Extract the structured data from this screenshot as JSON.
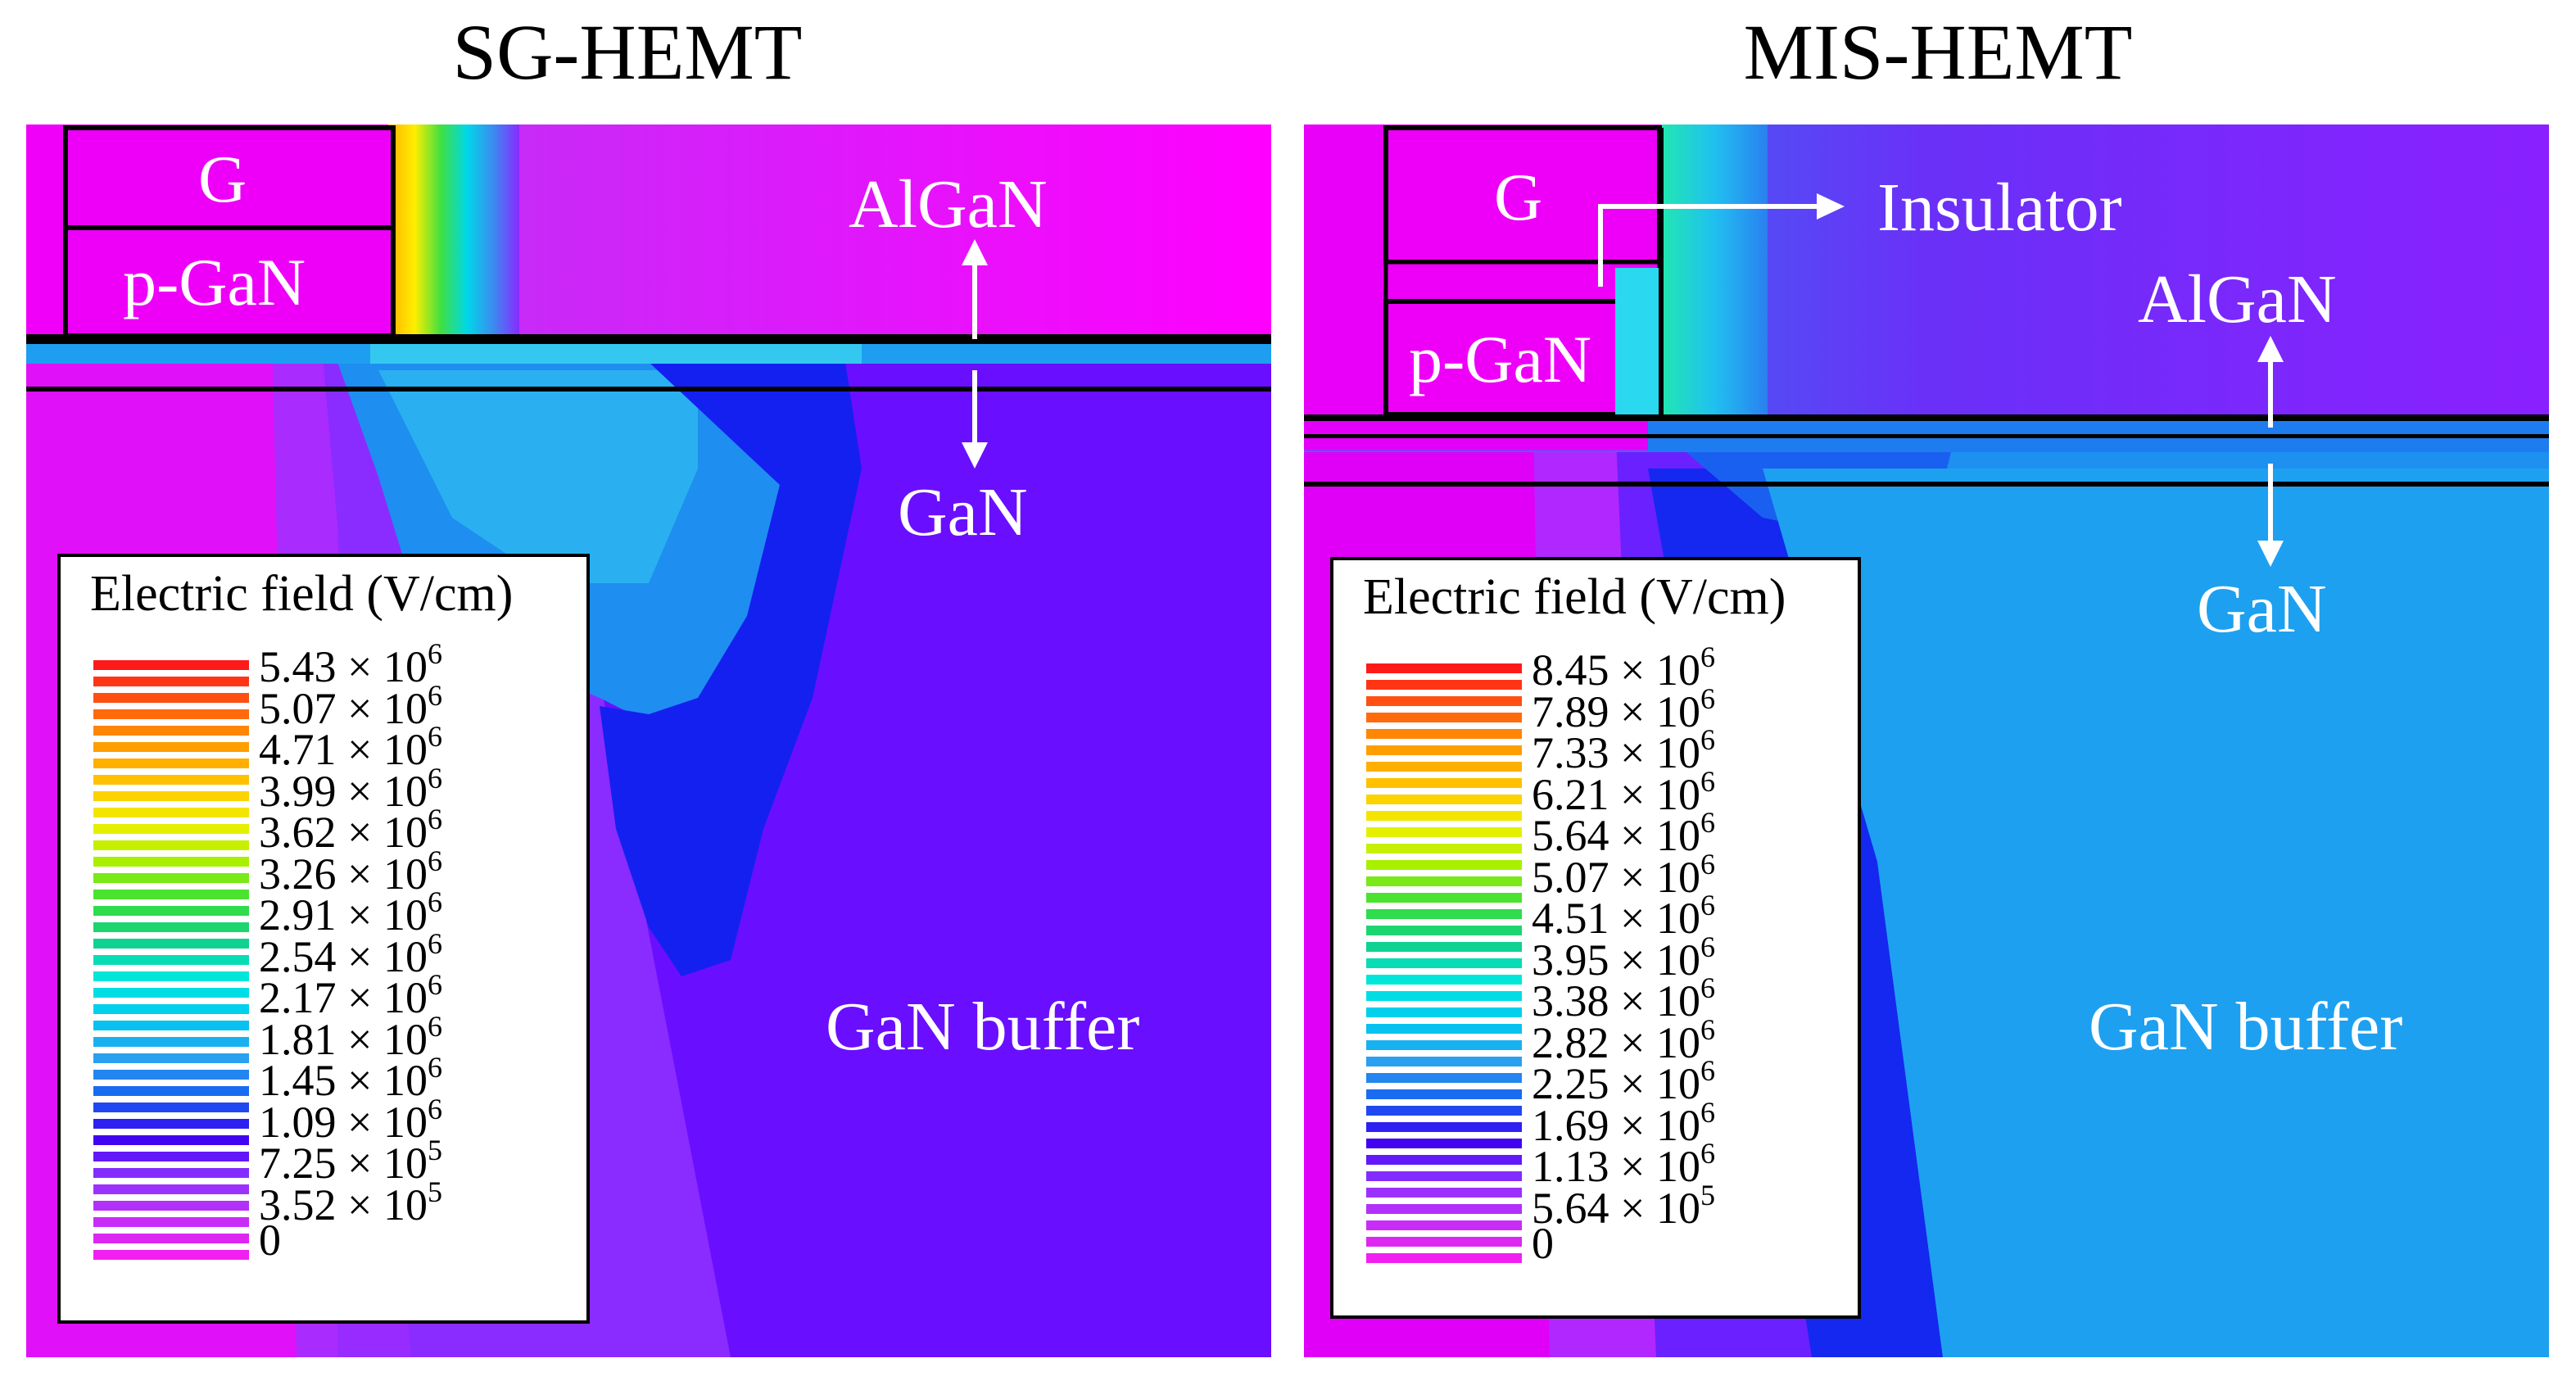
{
  "panels": {
    "left": {
      "title": "SG-HEMT",
      "labels": {
        "gate": "G",
        "pgan": "p-GaN",
        "algan": "AlGaN",
        "gan": "GaN",
        "buffer": "GaN buffer"
      },
      "legend": {
        "title": "Electric field (V/cm)",
        "items": [
          {
            "mant": "5.43 × 10",
            "exp": "6"
          },
          {
            "mant": "5.07 × 10",
            "exp": "6"
          },
          {
            "mant": "4.71 × 10",
            "exp": "6"
          },
          {
            "mant": "3.99 × 10",
            "exp": "6"
          },
          {
            "mant": "3.62 × 10",
            "exp": "6"
          },
          {
            "mant": "3.26 × 10",
            "exp": "6"
          },
          {
            "mant": "2.91 × 10",
            "exp": "6"
          },
          {
            "mant": "2.54 × 10",
            "exp": "6"
          },
          {
            "mant": "2.17 × 10",
            "exp": "6"
          },
          {
            "mant": "1.81 × 10",
            "exp": "6"
          },
          {
            "mant": "1.45 × 10",
            "exp": "6"
          },
          {
            "mant": "1.09 × 10",
            "exp": "6"
          },
          {
            "mant": "7.25 × 10",
            "exp": "5"
          },
          {
            "mant": "3.52 × 10",
            "exp": "5"
          },
          {
            "mant": "0",
            "exp": ""
          }
        ]
      }
    },
    "right": {
      "title": "MIS-HEMT",
      "labels": {
        "gate": "G",
        "insulator": "Insulator",
        "pgan": "p-GaN",
        "algan": "AlGaN",
        "gan": "GaN",
        "buffer": "GaN buffer"
      },
      "legend": {
        "title": "Electric field (V/cm)",
        "items": [
          {
            "mant": "8.45 × 10",
            "exp": "6"
          },
          {
            "mant": "7.89 × 10",
            "exp": "6"
          },
          {
            "mant": "7.33 × 10",
            "exp": "6"
          },
          {
            "mant": "6.21 × 10",
            "exp": "6"
          },
          {
            "mant": "5.64 × 10",
            "exp": "6"
          },
          {
            "mant": "5.07 × 10",
            "exp": "6"
          },
          {
            "mant": "4.51 × 10",
            "exp": "6"
          },
          {
            "mant": "3.95 × 10",
            "exp": "6"
          },
          {
            "mant": "3.38 × 10",
            "exp": "6"
          },
          {
            "mant": "2.82 × 10",
            "exp": "6"
          },
          {
            "mant": "2.25 × 10",
            "exp": "6"
          },
          {
            "mant": "1.69 × 10",
            "exp": "6"
          },
          {
            "mant": "1.13 × 10",
            "exp": "6"
          },
          {
            "mant": "5.64 × 10",
            "exp": "5"
          },
          {
            "mant": "0",
            "exp": ""
          }
        ]
      }
    }
  },
  "colors": {
    "field_max": "#ff0000",
    "field_zero": "#ff00ff",
    "background_text": "#ffffff"
  },
  "legend_colormap": [
    "#ff1a1a",
    "#ff5a10",
    "#ff9a00",
    "#ffc400",
    "#f0f000",
    "#a8f000",
    "#38e038",
    "#10d08a",
    "#00e8e0",
    "#00c8f0",
    "#2aa0f0",
    "#1660f0",
    "#3a00f0",
    "#8a30ff",
    "#c030f8",
    "#f020f0"
  ]
}
